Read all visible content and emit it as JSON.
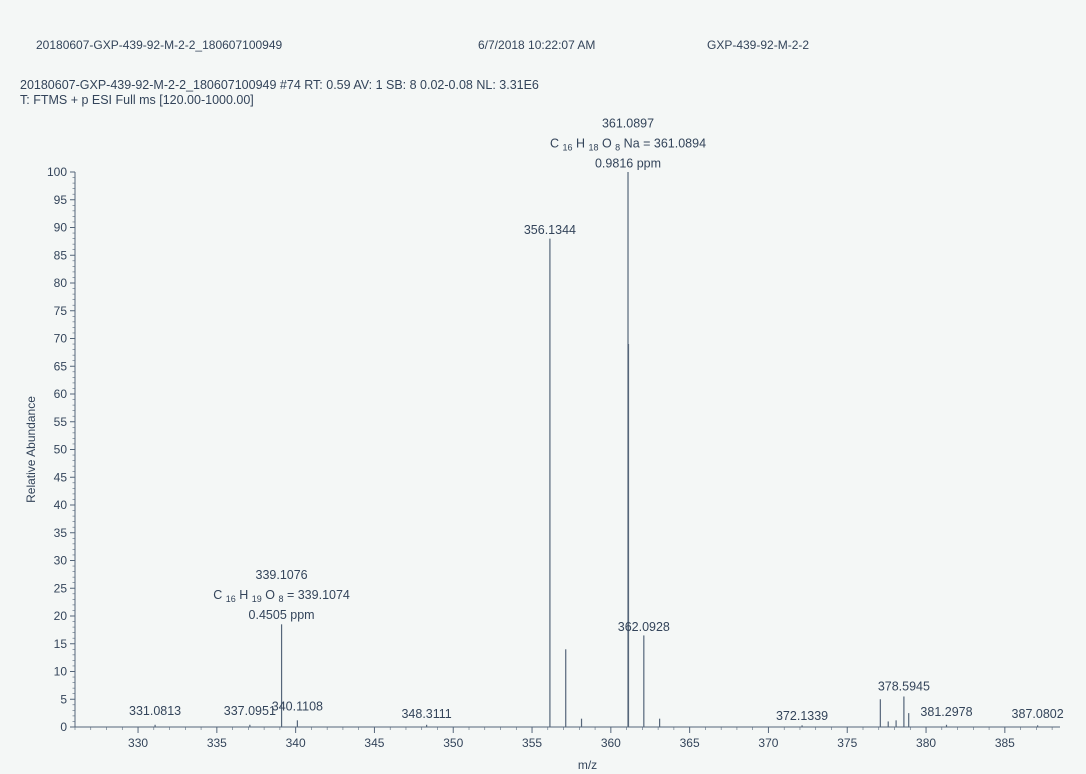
{
  "header": {
    "file_name": "20180607-GXP-439-92-M-2-2_180607100949",
    "date_time": "6/7/2018 10:22:07 AM",
    "sample_id": "GXP-439-92-M-2-2"
  },
  "scan": {
    "line": "20180607-GXP-439-92-M-2-2_180607100949 #74   RT: 0.59   AV: 1   SB: 8  0.02-0.08   NL: 3.31E6",
    "type": "T: FTMS + p ESI Full ms [120.00-1000.00]"
  },
  "colors": {
    "background": "#f4f7f6",
    "axis": "#55667a",
    "peaks": "#55667a",
    "text": "#33445a"
  },
  "chart_data": {
    "type": "bar",
    "title": "",
    "xlabel": "m/z",
    "ylabel": "Relative Abundance",
    "xlim": [
      326,
      388.5
    ],
    "ylim": [
      0,
      100
    ],
    "x_ticks": [
      330,
      335,
      340,
      345,
      350,
      355,
      360,
      365,
      370,
      375,
      380,
      385
    ],
    "y_ticks": [
      0,
      5,
      10,
      15,
      20,
      25,
      30,
      35,
      40,
      45,
      50,
      55,
      60,
      65,
      70,
      75,
      80,
      85,
      90,
      95,
      100
    ],
    "peaks": [
      {
        "mz": 331.0813,
        "intensity": 0.4
      },
      {
        "mz": 337.0951,
        "intensity": 0.4
      },
      {
        "mz": 339.1076,
        "intensity": 18.5
      },
      {
        "mz": 340.1108,
        "intensity": 1.2
      },
      {
        "mz": 348.3111,
        "intensity": 0.4
      },
      {
        "mz": 356.1344,
        "intensity": 88
      },
      {
        "mz": 357.1376,
        "intensity": 14
      },
      {
        "mz": 358.14,
        "intensity": 1.5
      },
      {
        "mz": 361.0897,
        "intensity": 100
      },
      {
        "mz": 361.12,
        "intensity": 69
      },
      {
        "mz": 362.0928,
        "intensity": 16.5
      },
      {
        "mz": 363.095,
        "intensity": 1.5
      },
      {
        "mz": 372.1339,
        "intensity": 0.3
      },
      {
        "mz": 377.1,
        "intensity": 5
      },
      {
        "mz": 377.6,
        "intensity": 1
      },
      {
        "mz": 378.1,
        "intensity": 1.2
      },
      {
        "mz": 378.5945,
        "intensity": 5.5
      },
      {
        "mz": 378.9,
        "intensity": 2.5
      },
      {
        "mz": 381.2978,
        "intensity": 0.4
      },
      {
        "mz": 387.0802,
        "intensity": 0.3
      }
    ],
    "annotations": [
      {
        "mz": 331.0813,
        "y": 2.2,
        "lines": [
          "331.0813"
        ]
      },
      {
        "mz": 337.0951,
        "y": 2.2,
        "lines": [
          "337.0951"
        ]
      },
      {
        "mz": 339.1076,
        "y": 19.5,
        "lines": [
          "339.1076",
          "C 16 H 19 O 8 = 339.1074",
          "0.4505 ppm"
        ]
      },
      {
        "mz": 340.1108,
        "y": 3.0,
        "lines": [
          "340.1108"
        ]
      },
      {
        "mz": 348.3111,
        "y": 1.6,
        "lines": [
          "348.3111"
        ]
      },
      {
        "mz": 356.1344,
        "y": 88.8,
        "lines": [
          "356.1344"
        ]
      },
      {
        "mz": 361.0897,
        "y": 100.8,
        "lines": [
          "361.0897",
          "C 16 H 18 O 8 Na = 361.0894",
          "0.9816 ppm"
        ]
      },
      {
        "mz": 362.0928,
        "y": 17.3,
        "lines": [
          "362.0928"
        ]
      },
      {
        "mz": 372.1339,
        "y": 1.3,
        "lines": [
          "372.1339"
        ]
      },
      {
        "mz": 378.5945,
        "y": 6.6,
        "lines": [
          "378.5945"
        ]
      },
      {
        "mz": 381.2978,
        "y": 2.0,
        "lines": [
          "381.2978"
        ]
      },
      {
        "mz": 387.0802,
        "y": 1.6,
        "lines": [
          "387.0802"
        ]
      }
    ]
  }
}
